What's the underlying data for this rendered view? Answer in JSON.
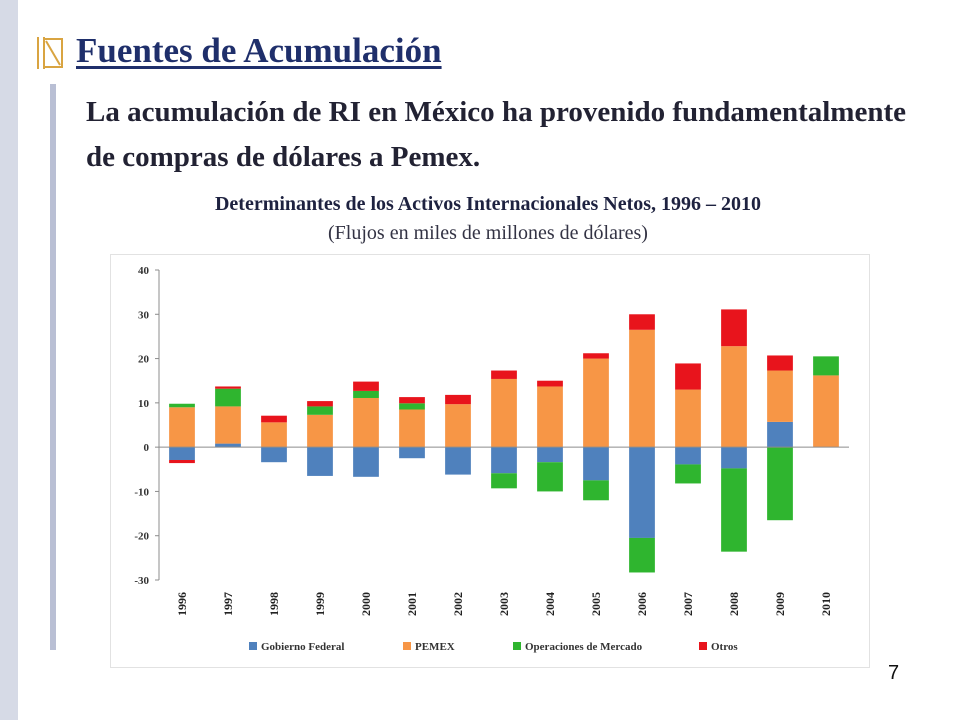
{
  "slide": {
    "title": "Fuentes de Acumulación",
    "lead": "La acumulación de RI en México ha provenido fundamentalmente de compras de dólares a Pemex.",
    "page_number": "7"
  },
  "colors": {
    "title": "#1f2f6b",
    "gobierno": "#4f81bd",
    "pemex": "#f79646",
    "operaciones": "#2fb52f",
    "otros": "#e8141c"
  },
  "chart_data": {
    "type": "bar",
    "stacked": true,
    "title": "Determinantes de los Activos Internacionales Netos, 1996 – 2010",
    "subtitle": "(Flujos en miles de millones de dólares)",
    "categories": [
      "1996",
      "1997",
      "1998",
      "1999",
      "2000",
      "2001",
      "2002",
      "2003",
      "2004",
      "2005",
      "2006",
      "2007",
      "2008",
      "2009",
      "2010"
    ],
    "ylim": [
      -30,
      40
    ],
    "yticks": [
      40,
      30,
      20,
      10,
      0,
      -10,
      -20,
      -30
    ],
    "legend_position": "bottom",
    "grid": false,
    "series": [
      {
        "name": "Gobierno Federal",
        "color": "#4f81bd",
        "values": [
          -2.9,
          0.8,
          -3.4,
          -6.5,
          -6.7,
          -2.5,
          -6.2,
          -5.9,
          -3.4,
          -7.5,
          -20.5,
          -3.9,
          -4.8,
          5.7,
          0.0
        ]
      },
      {
        "name": "PEMEX",
        "color": "#f79646",
        "values": [
          9.0,
          8.4,
          5.6,
          7.3,
          11.1,
          8.5,
          9.7,
          15.4,
          13.7,
          20.0,
          26.5,
          13.0,
          22.8,
          11.6,
          16.2
        ]
      },
      {
        "name": "Operaciones de Mercado",
        "color": "#2fb52f",
        "values": [
          0.8,
          4.0,
          0.0,
          1.9,
          1.6,
          1.4,
          0.0,
          -3.4,
          -6.6,
          -4.5,
          -7.8,
          -4.3,
          -18.8,
          -16.5,
          4.3
        ]
      },
      {
        "name": "Otros",
        "color": "#e8141c",
        "values": [
          -0.7,
          0.5,
          1.5,
          1.2,
          2.1,
          1.4,
          2.1,
          1.9,
          1.3,
          1.2,
          3.5,
          5.9,
          8.3,
          3.4,
          0.0
        ]
      }
    ]
  }
}
